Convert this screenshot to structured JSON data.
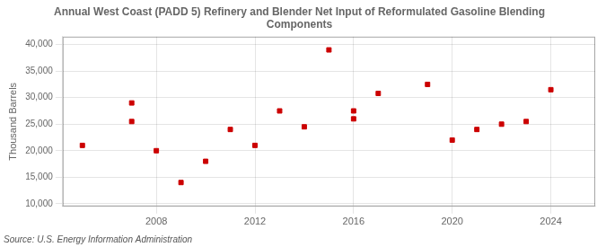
{
  "chart_data": {
    "type": "scatter",
    "title": "Annual West Coast (PADD 5) Refinery and Blender Net Input of Reformulated Gasoline Blending\nComponents",
    "ylabel": "Thousand Barrels",
    "source": "Source: U.S. Energy Information Administration",
    "x": [
      2005,
      2007,
      2007,
      2008,
      2009,
      2010,
      2011,
      2012,
      2013,
      2014,
      2015,
      2016,
      2016,
      2017,
      2019,
      2020,
      2021,
      2022,
      2023,
      2024
    ],
    "values": [
      21000,
      25500,
      29000,
      20000,
      14000,
      18000,
      24000,
      21000,
      27500,
      24500,
      39000,
      27500,
      26000,
      30800,
      32500,
      22000,
      24000,
      25000,
      25500,
      31500
    ],
    "color": "#cc0000",
    "marker": "square",
    "xlim": [
      2004.2,
      2025.8
    ],
    "xticks": [
      2008,
      2012,
      2016,
      2020,
      2024
    ],
    "ylim": [
      9500,
      41500
    ],
    "yticks": [
      {
        "value": 10000,
        "label": "10,000"
      },
      {
        "value": 15000,
        "label": "15,000"
      },
      {
        "value": 20000,
        "label": "20,000"
      },
      {
        "value": 25000,
        "label": "25,000"
      },
      {
        "value": 30000,
        "label": "30,000"
      },
      {
        "value": 35000,
        "label": "35,000"
      },
      {
        "value": 40000,
        "label": "40,000"
      }
    ],
    "grid": true
  }
}
